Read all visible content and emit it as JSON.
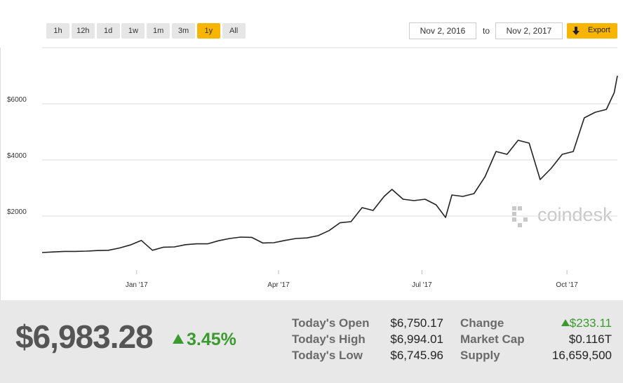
{
  "controls": {
    "ranges": [
      "1h",
      "12h",
      "1d",
      "1w",
      "1m",
      "3m",
      "1y",
      "All"
    ],
    "active_range": "1y",
    "from": "Nov 2, 2016",
    "to_label": "to",
    "to": "Nov 2, 2017",
    "export": "Export"
  },
  "chart_data": {
    "type": "line",
    "color": "#222222",
    "grid": true,
    "watermark": "coindesk",
    "x": [
      "2016-11-02",
      "2016-11-09",
      "2016-11-16",
      "2016-11-23",
      "2016-11-30",
      "2016-12-07",
      "2016-12-14",
      "2016-12-21",
      "2016-12-28",
      "2017-01-04",
      "2017-01-11",
      "2017-01-18",
      "2017-01-25",
      "2017-02-01",
      "2017-02-08",
      "2017-02-15",
      "2017-02-22",
      "2017-03-01",
      "2017-03-08",
      "2017-03-15",
      "2017-03-22",
      "2017-03-29",
      "2017-04-05",
      "2017-04-12",
      "2017-04-19",
      "2017-04-26",
      "2017-05-03",
      "2017-05-10",
      "2017-05-17",
      "2017-05-24",
      "2017-05-31",
      "2017-06-07",
      "2017-06-12",
      "2017-06-19",
      "2017-06-26",
      "2017-07-03",
      "2017-07-10",
      "2017-07-16",
      "2017-07-20",
      "2017-07-27",
      "2017-08-03",
      "2017-08-10",
      "2017-08-17",
      "2017-08-24",
      "2017-08-31",
      "2017-09-07",
      "2017-09-14",
      "2017-09-21",
      "2017-09-28",
      "2017-10-05",
      "2017-10-12",
      "2017-10-19",
      "2017-10-26",
      "2017-10-31",
      "2017-11-02"
    ],
    "values": [
      700,
      720,
      740,
      740,
      750,
      770,
      780,
      860,
      970,
      1130,
      780,
      890,
      900,
      980,
      1010,
      1010,
      1120,
      1200,
      1250,
      1240,
      1040,
      1050,
      1130,
      1200,
      1220,
      1300,
      1480,
      1760,
      1800,
      2300,
      2200,
      2700,
      2950,
      2600,
      2550,
      2600,
      2400,
      1950,
      2750,
      2700,
      2800,
      3400,
      4300,
      4200,
      4700,
      4600,
      3300,
      3700,
      4200,
      4300,
      5500,
      5700,
      5800,
      6400,
      7000
    ],
    "xlim": [
      "2016-11-02",
      "2017-11-02"
    ],
    "xticks": [
      {
        "value": "2017-01-01",
        "label": "Jan '17"
      },
      {
        "value": "2017-04-01",
        "label": "Apr '17"
      },
      {
        "value": "2017-07-01",
        "label": "Jul '17"
      },
      {
        "value": "2017-10-01",
        "label": "Oct '17"
      }
    ],
    "ylim": [
      0,
      8000
    ],
    "yticks": [
      {
        "value": 2000,
        "label": "$2000"
      },
      {
        "value": 4000,
        "label": "$4000"
      },
      {
        "value": 6000,
        "label": "$6000"
      }
    ]
  },
  "stats": {
    "price": "$6,983.28",
    "change_pct": "3.45%",
    "rows": [
      [
        "Today's Open",
        "$6,750.17",
        "Change",
        "$233.11"
      ],
      [
        "Today's High",
        "$6,994.01",
        "Market Cap",
        "$0.116T"
      ],
      [
        "Today's Low",
        "$6,745.96",
        "Supply",
        "16,659,500"
      ]
    ]
  }
}
